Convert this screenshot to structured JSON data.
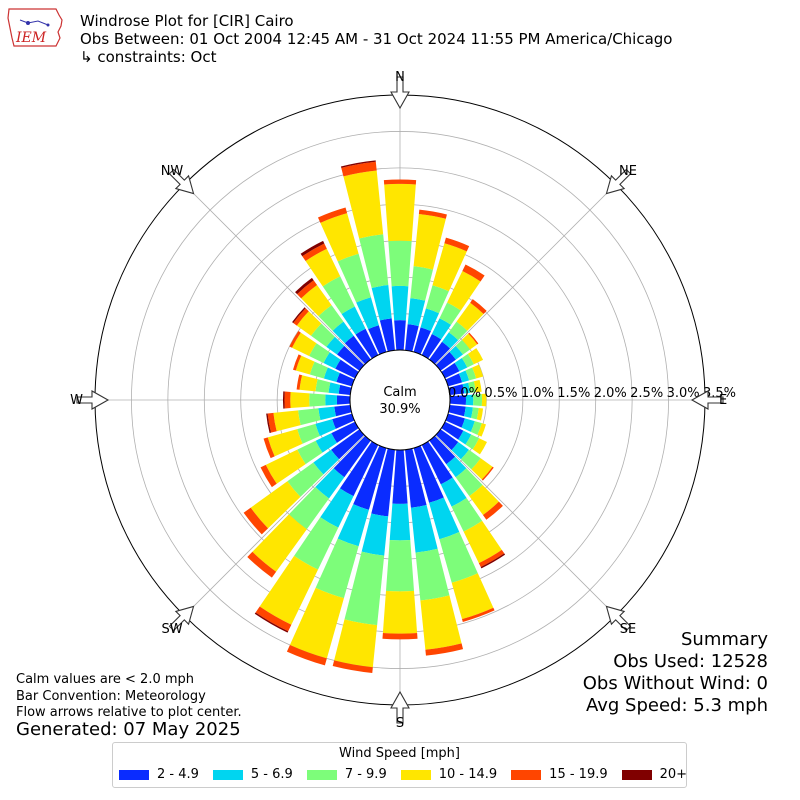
{
  "header": {
    "title": "Windrose Plot for [CIR] Cairo",
    "period": "Obs Between: 01 Oct 2004 12:45 AM - 31 Oct 2024 11:55 PM America/Chicago",
    "constraints": "↳ constraints: Oct"
  },
  "logo": {
    "text": "IEM",
    "icon": "iem-state-logo-icon"
  },
  "notes": {
    "calm": "Calm values are < 2.0 mph",
    "convention": "Bar Convention: Meteorology",
    "arrows": "Flow arrows relative to plot center.",
    "generated": "Generated: 07 May 2025"
  },
  "summary": {
    "title": "Summary",
    "obs_used": "Obs Used: 12528",
    "obs_without_wind": "Obs Without Wind: 0",
    "avg_speed": "Avg Speed: 5.3 mph"
  },
  "legend": {
    "title": "Wind Speed [mph]"
  },
  "chart_data": {
    "type": "windrose",
    "calm_label": "Calm",
    "calm_value": "30.9%",
    "compass": [
      "N",
      "NE",
      "E",
      "SE",
      "S",
      "SW",
      "W",
      "NW"
    ],
    "radial_ticks": [
      "0.0%",
      "0.5%",
      "1.0%",
      "1.5%",
      "2.0%",
      "2.5%",
      "3.0%",
      "3.5%"
    ],
    "rmax": 3.5,
    "bins": [
      {
        "label": "2 - 4.9",
        "color": "#0a2cff"
      },
      {
        "label": "5 - 6.9",
        "color": "#00d5f0"
      },
      {
        "label": "7 - 9.9",
        "color": "#7dfd7a"
      },
      {
        "label": "10 - 14.9",
        "color": "#ffe600"
      },
      {
        "label": "15 - 19.9",
        "color": "#ff4500"
      },
      {
        "label": "20+",
        "color": "#800000"
      }
    ],
    "directions_deg": [
      0,
      10,
      20,
      30,
      40,
      50,
      60,
      70,
      80,
      90,
      100,
      110,
      120,
      130,
      140,
      150,
      160,
      170,
      180,
      190,
      200,
      210,
      220,
      230,
      240,
      250,
      260,
      270,
      280,
      290,
      300,
      310,
      320,
      330,
      340,
      350
    ],
    "cumulative_pct": [
      [
        0.41,
        0.88,
        1.5,
        2.28,
        2.34,
        2.34
      ],
      [
        0.36,
        0.72,
        1.16,
        1.88,
        1.94,
        1.94
      ],
      [
        0.35,
        0.62,
        0.95,
        1.55,
        1.63,
        1.63
      ],
      [
        0.32,
        0.56,
        0.8,
        1.28,
        1.38,
        1.38
      ],
      [
        0.3,
        0.46,
        0.64,
        0.96,
        1.02,
        1.02
      ],
      [
        0.26,
        0.38,
        0.5,
        0.62,
        0.64,
        0.64
      ],
      [
        0.22,
        0.34,
        0.44,
        0.58,
        0.58,
        0.58
      ],
      [
        0.2,
        0.3,
        0.4,
        0.5,
        0.5,
        0.5
      ],
      [
        0.2,
        0.28,
        0.36,
        0.44,
        0.44,
        0.44
      ],
      [
        0.22,
        0.32,
        0.44,
        0.5,
        0.5,
        0.5
      ],
      [
        0.22,
        0.32,
        0.4,
        0.46,
        0.46,
        0.46
      ],
      [
        0.24,
        0.38,
        0.48,
        0.54,
        0.54,
        0.54
      ],
      [
        0.28,
        0.4,
        0.52,
        0.64,
        0.64,
        0.64
      ],
      [
        0.3,
        0.48,
        0.68,
        0.88,
        0.9,
        0.9
      ],
      [
        0.4,
        0.62,
        0.94,
        1.26,
        1.34,
        1.34
      ],
      [
        0.6,
        0.94,
        1.32,
        1.8,
        1.86,
        1.88
      ],
      [
        0.78,
        1.3,
        1.92,
        2.44,
        2.48,
        2.48
      ],
      [
        0.8,
        1.42,
        2.08,
        2.76,
        2.84,
        2.84
      ],
      [
        0.74,
        1.24,
        1.94,
        2.52,
        2.6,
        2.6
      ],
      [
        0.92,
        1.46,
        2.42,
        3.0,
        3.08,
        3.08
      ],
      [
        0.88,
        1.4,
        2.14,
        3.0,
        3.1,
        3.1
      ],
      [
        0.78,
        1.26,
        1.9,
        2.74,
        2.84,
        2.86
      ],
      [
        0.62,
        0.98,
        1.5,
        2.22,
        2.32,
        2.32
      ],
      [
        0.48,
        0.78,
        1.22,
        1.84,
        1.96,
        1.96
      ],
      [
        0.36,
        0.6,
        0.88,
        1.36,
        1.44,
        1.44
      ],
      [
        0.28,
        0.52,
        0.78,
        1.2,
        1.26,
        1.26
      ],
      [
        0.22,
        0.44,
        0.72,
        1.06,
        1.14,
        1.16
      ],
      [
        0.18,
        0.34,
        0.56,
        0.82,
        0.9,
        0.92
      ],
      [
        0.16,
        0.3,
        0.48,
        0.7,
        0.74,
        0.74
      ],
      [
        0.22,
        0.4,
        0.6,
        0.8,
        0.84,
        0.84
      ],
      [
        0.3,
        0.48,
        0.7,
        0.96,
        1.0,
        1.0
      ],
      [
        0.38,
        0.56,
        0.82,
        1.06,
        1.12,
        1.14
      ],
      [
        0.4,
        0.64,
        0.92,
        1.26,
        1.34,
        1.38
      ],
      [
        0.4,
        0.74,
        1.2,
        1.62,
        1.7,
        1.74
      ],
      [
        0.38,
        0.78,
        1.4,
        1.98,
        2.06,
        2.06
      ],
      [
        0.44,
        0.9,
        1.6,
        2.48,
        2.6,
        2.62
      ]
    ]
  }
}
